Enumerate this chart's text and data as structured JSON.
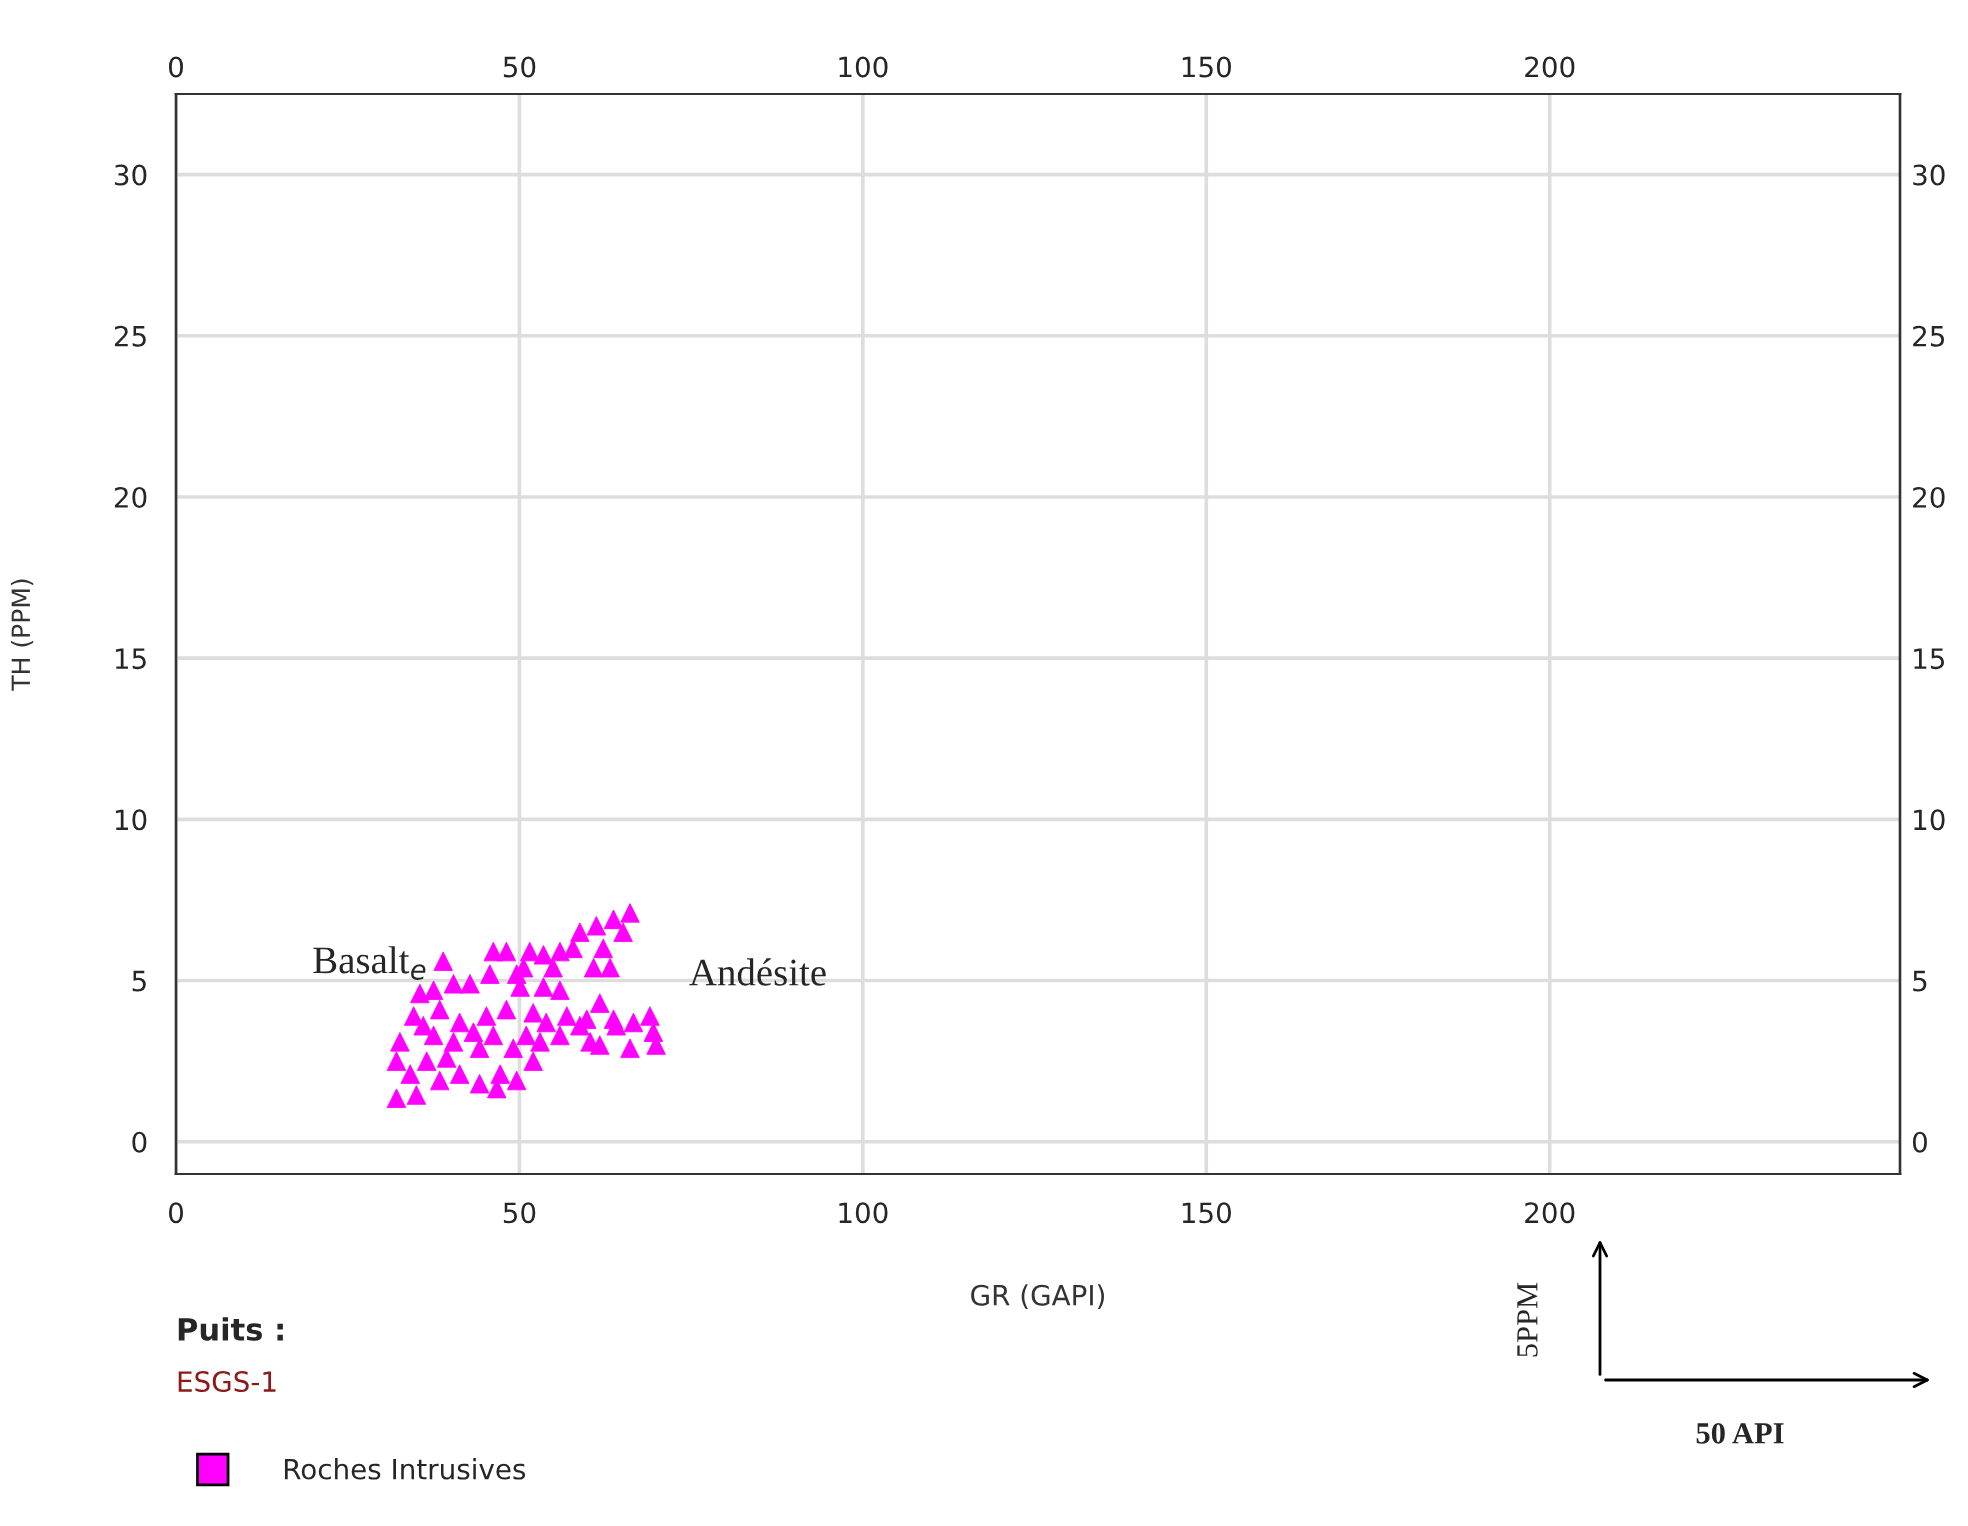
{
  "chart_data": {
    "type": "scatter",
    "xlabel": "GR (GAPI)",
    "ylabel": "TH (PPM)",
    "xlim": [
      0,
      251
    ],
    "ylim": [
      -1,
      32.5
    ],
    "xticks": [
      0,
      50,
      100,
      150,
      200
    ],
    "yticks": [
      0,
      5,
      10,
      15,
      20,
      25,
      30
    ],
    "x2lim": [
      0,
      251
    ],
    "x2ticks": [
      0,
      50,
      100,
      150,
      200
    ],
    "y2lim": [
      -1,
      32.5
    ],
    "y2ticks": [
      0,
      5,
      10,
      15,
      20,
      25,
      30
    ],
    "grid": true,
    "legend": "bottom left",
    "marker": "triangle",
    "series": [
      {
        "name": "Roches Intrusives",
        "color": "#ff00ff",
        "x": [
          66.1,
          63.7,
          61.2,
          58.8,
          65.1,
          57.8,
          62.2,
          55.9,
          53.5,
          51.5,
          48.1,
          46.2,
          38.9,
          60.8,
          63.2,
          54.9,
          50.6,
          45.7,
          42.8,
          40.4,
          37.5,
          35.5,
          50.1,
          53.5,
          55.9,
          61.7,
          56.9,
          59.8,
          63.7,
          66.6,
          69.0,
          69.5,
          69.9,
          66.1,
          64.1,
          60.3,
          34.6,
          32.6,
          32.1,
          32.1,
          35.0,
          38.4,
          41.3,
          44.2,
          47.2,
          49.6,
          46.7,
          52.0,
          49.1,
          44.2,
          40.4,
          37.5,
          36.5,
          41.3,
          45.2,
          48.1,
          52.0,
          53.9,
          38.4,
          36.0,
          43.3,
          46.2,
          51.0,
          39.4,
          34.1,
          53.0,
          55.9,
          49.6,
          58.8,
          61.7
        ],
        "values": [
          7.1,
          6.9,
          6.7,
          6.5,
          6.5,
          6.0,
          6.0,
          5.9,
          5.8,
          5.9,
          5.9,
          5.9,
          5.6,
          5.4,
          5.4,
          5.4,
          5.4,
          5.2,
          4.9,
          4.9,
          4.7,
          4.6,
          4.8,
          4.8,
          4.7,
          4.3,
          3.9,
          3.8,
          3.8,
          3.7,
          3.9,
          3.4,
          3.0,
          2.9,
          3.6,
          3.1,
          3.9,
          3.1,
          2.5,
          1.35,
          1.45,
          1.9,
          2.1,
          1.8,
          2.1,
          1.9,
          1.65,
          2.5,
          2.9,
          2.9,
          3.1,
          3.3,
          2.5,
          3.7,
          3.9,
          4.1,
          4.0,
          3.7,
          4.1,
          3.6,
          3.4,
          3.3,
          3.3,
          2.6,
          2.1,
          3.1,
          3.3,
          5.2,
          3.6,
          3.0
        ]
      }
    ],
    "annotations": [
      "Basalt$_{e}$",
      "Andésite",
      "Puits :",
      "ESGS-1",
      "5PPM",
      "50 API"
    ]
  }
}
